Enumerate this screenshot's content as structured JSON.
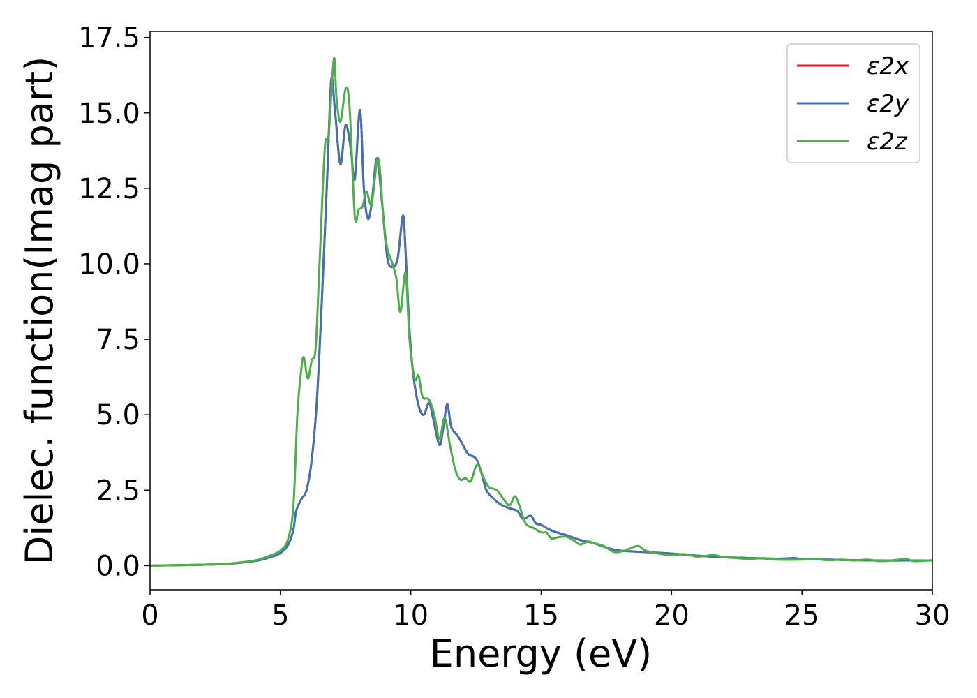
{
  "chart_data": {
    "type": "line",
    "xlabel": "Energy (eV)",
    "ylabel": "Dielec. function(Imag part)",
    "xlim": [
      0,
      30
    ],
    "ylim": [
      -0.8,
      17.7
    ],
    "x_ticks": [
      "0",
      "5",
      "10",
      "15",
      "20",
      "25",
      "30"
    ],
    "y_ticks": [
      "0.0",
      "2.5",
      "5.0",
      "7.5",
      "10.0",
      "12.5",
      "15.0",
      "17.5"
    ],
    "grid": false,
    "legend_position": "top-right",
    "series": [
      {
        "name": "ε2x",
        "color": "#e41a1c",
        "points": [
          [
            0,
            0.0
          ],
          [
            2,
            0.03
          ],
          [
            3,
            0.06
          ],
          [
            4,
            0.15
          ],
          [
            4.5,
            0.25
          ],
          [
            5,
            0.42
          ],
          [
            5.3,
            0.7
          ],
          [
            5.5,
            1.2
          ],
          [
            5.6,
            1.8
          ],
          [
            5.8,
            2.2
          ],
          [
            6.0,
            2.5
          ],
          [
            6.2,
            3.5
          ],
          [
            6.4,
            5.5
          ],
          [
            6.6,
            9.0
          ],
          [
            6.8,
            13.0
          ],
          [
            6.95,
            16.1
          ],
          [
            7.1,
            15.0
          ],
          [
            7.3,
            13.3
          ],
          [
            7.5,
            14.6
          ],
          [
            7.7,
            13.8
          ],
          [
            7.85,
            12.8
          ],
          [
            8.05,
            15.1
          ],
          [
            8.2,
            12.5
          ],
          [
            8.35,
            11.5
          ],
          [
            8.5,
            12.0
          ],
          [
            8.7,
            13.5
          ],
          [
            8.9,
            12.0
          ],
          [
            9.1,
            10.2
          ],
          [
            9.3,
            9.9
          ],
          [
            9.5,
            10.2
          ],
          [
            9.7,
            11.6
          ],
          [
            9.8,
            10.4
          ],
          [
            9.95,
            7.8
          ],
          [
            10.1,
            6.3
          ],
          [
            10.3,
            5.3
          ],
          [
            10.5,
            5.0
          ],
          [
            10.7,
            5.4
          ],
          [
            10.85,
            4.9
          ],
          [
            11.1,
            4.0
          ],
          [
            11.25,
            4.6
          ],
          [
            11.4,
            5.35
          ],
          [
            11.55,
            4.6
          ],
          [
            11.8,
            4.3
          ],
          [
            12.0,
            4.0
          ],
          [
            12.2,
            3.7
          ],
          [
            12.5,
            3.55
          ],
          [
            12.7,
            3.1
          ],
          [
            12.9,
            2.5
          ],
          [
            13.2,
            2.2
          ],
          [
            13.5,
            2.0
          ],
          [
            13.8,
            1.9
          ],
          [
            14.1,
            1.8
          ],
          [
            14.3,
            1.55
          ],
          [
            14.6,
            1.65
          ],
          [
            14.8,
            1.4
          ],
          [
            15.0,
            1.35
          ],
          [
            15.3,
            1.2
          ],
          [
            15.6,
            1.1
          ],
          [
            16.0,
            1.0
          ],
          [
            16.5,
            0.85
          ],
          [
            17.0,
            0.75
          ],
          [
            17.5,
            0.6
          ],
          [
            18,
            0.5
          ],
          [
            19,
            0.45
          ],
          [
            20,
            0.4
          ],
          [
            21,
            0.33
          ],
          [
            22,
            0.28
          ],
          [
            23,
            0.25
          ],
          [
            24,
            0.23
          ],
          [
            24.7,
            0.25
          ],
          [
            25,
            0.22
          ],
          [
            26,
            0.2
          ],
          [
            27,
            0.18
          ],
          [
            28,
            0.17
          ],
          [
            29,
            0.17
          ],
          [
            30,
            0.17
          ]
        ]
      },
      {
        "name": "ε2y",
        "color": "#3f73b5",
        "points": [
          [
            0,
            0.0
          ],
          [
            2,
            0.03
          ],
          [
            3,
            0.06
          ],
          [
            4,
            0.15
          ],
          [
            4.5,
            0.25
          ],
          [
            5,
            0.42
          ],
          [
            5.3,
            0.7
          ],
          [
            5.5,
            1.2
          ],
          [
            5.6,
            1.8
          ],
          [
            5.8,
            2.2
          ],
          [
            6.0,
            2.5
          ],
          [
            6.2,
            3.5
          ],
          [
            6.4,
            5.5
          ],
          [
            6.6,
            9.0
          ],
          [
            6.8,
            13.0
          ],
          [
            6.95,
            16.1
          ],
          [
            7.1,
            15.0
          ],
          [
            7.3,
            13.3
          ],
          [
            7.5,
            14.6
          ],
          [
            7.7,
            13.8
          ],
          [
            7.85,
            12.8
          ],
          [
            8.05,
            15.1
          ],
          [
            8.2,
            12.5
          ],
          [
            8.35,
            11.5
          ],
          [
            8.5,
            12.0
          ],
          [
            8.7,
            13.5
          ],
          [
            8.9,
            12.0
          ],
          [
            9.1,
            10.2
          ],
          [
            9.3,
            9.9
          ],
          [
            9.5,
            10.2
          ],
          [
            9.7,
            11.6
          ],
          [
            9.8,
            10.4
          ],
          [
            9.95,
            7.8
          ],
          [
            10.1,
            6.3
          ],
          [
            10.3,
            5.3
          ],
          [
            10.5,
            5.0
          ],
          [
            10.7,
            5.4
          ],
          [
            10.85,
            4.9
          ],
          [
            11.1,
            4.0
          ],
          [
            11.25,
            4.6
          ],
          [
            11.4,
            5.35
          ],
          [
            11.55,
            4.6
          ],
          [
            11.8,
            4.3
          ],
          [
            12.0,
            4.0
          ],
          [
            12.2,
            3.7
          ],
          [
            12.5,
            3.55
          ],
          [
            12.7,
            3.1
          ],
          [
            12.9,
            2.5
          ],
          [
            13.2,
            2.2
          ],
          [
            13.5,
            2.0
          ],
          [
            13.8,
            1.9
          ],
          [
            14.1,
            1.8
          ],
          [
            14.3,
            1.55
          ],
          [
            14.6,
            1.65
          ],
          [
            14.8,
            1.4
          ],
          [
            15.0,
            1.35
          ],
          [
            15.3,
            1.2
          ],
          [
            15.6,
            1.1
          ],
          [
            16.0,
            1.0
          ],
          [
            16.5,
            0.85
          ],
          [
            17.0,
            0.75
          ],
          [
            17.5,
            0.6
          ],
          [
            18,
            0.5
          ],
          [
            19,
            0.45
          ],
          [
            20,
            0.4
          ],
          [
            21,
            0.33
          ],
          [
            22,
            0.28
          ],
          [
            23,
            0.25
          ],
          [
            24,
            0.23
          ],
          [
            24.7,
            0.25
          ],
          [
            25,
            0.22
          ],
          [
            26,
            0.2
          ],
          [
            27,
            0.18
          ],
          [
            28,
            0.17
          ],
          [
            29,
            0.17
          ],
          [
            30,
            0.17
          ]
        ]
      },
      {
        "name": "ε2z",
        "color": "#4daf4a",
        "points": [
          [
            0,
            0.0
          ],
          [
            2,
            0.03
          ],
          [
            3,
            0.07
          ],
          [
            4,
            0.17
          ],
          [
            4.5,
            0.3
          ],
          [
            5,
            0.5
          ],
          [
            5.3,
            0.9
          ],
          [
            5.5,
            2.0
          ],
          [
            5.65,
            5.0
          ],
          [
            5.8,
            6.5
          ],
          [
            5.9,
            6.9
          ],
          [
            6.05,
            6.2
          ],
          [
            6.2,
            6.8
          ],
          [
            6.35,
            7.2
          ],
          [
            6.5,
            10.0
          ],
          [
            6.7,
            13.8
          ],
          [
            6.85,
            14.3
          ],
          [
            7.05,
            16.8
          ],
          [
            7.15,
            15.5
          ],
          [
            7.3,
            14.7
          ],
          [
            7.5,
            15.8
          ],
          [
            7.65,
            15.2
          ],
          [
            7.85,
            11.6
          ],
          [
            8.0,
            11.8
          ],
          [
            8.15,
            11.9
          ],
          [
            8.3,
            12.4
          ],
          [
            8.5,
            12.0
          ],
          [
            8.75,
            13.5
          ],
          [
            8.95,
            11.5
          ],
          [
            9.1,
            10.5
          ],
          [
            9.3,
            10.0
          ],
          [
            9.45,
            9.5
          ],
          [
            9.6,
            8.4
          ],
          [
            9.8,
            9.7
          ],
          [
            9.95,
            7.5
          ],
          [
            10.15,
            6.2
          ],
          [
            10.3,
            6.3
          ],
          [
            10.45,
            5.6
          ],
          [
            10.7,
            5.5
          ],
          [
            10.9,
            5.0
          ],
          [
            11.1,
            4.2
          ],
          [
            11.3,
            4.9
          ],
          [
            11.5,
            4.0
          ],
          [
            11.7,
            3.2
          ],
          [
            11.9,
            2.85
          ],
          [
            12.1,
            2.9
          ],
          [
            12.3,
            2.8
          ],
          [
            12.55,
            3.35
          ],
          [
            12.8,
            2.9
          ],
          [
            13.0,
            2.6
          ],
          [
            13.3,
            2.5
          ],
          [
            13.6,
            2.15
          ],
          [
            13.8,
            2.0
          ],
          [
            14.0,
            2.3
          ],
          [
            14.2,
            1.9
          ],
          [
            14.4,
            1.4
          ],
          [
            14.7,
            1.25
          ],
          [
            15.0,
            1.1
          ],
          [
            15.2,
            1.1
          ],
          [
            15.4,
            0.9
          ],
          [
            15.7,
            0.95
          ],
          [
            16.0,
            0.95
          ],
          [
            16.3,
            0.8
          ],
          [
            16.5,
            0.7
          ],
          [
            16.8,
            0.8
          ],
          [
            17.0,
            0.75
          ],
          [
            17.4,
            0.65
          ],
          [
            17.8,
            0.45
          ],
          [
            18.2,
            0.5
          ],
          [
            18.7,
            0.65
          ],
          [
            19.0,
            0.5
          ],
          [
            19.5,
            0.4
          ],
          [
            20,
            0.35
          ],
          [
            20.5,
            0.38
          ],
          [
            21,
            0.3
          ],
          [
            21.6,
            0.35
          ],
          [
            22,
            0.28
          ],
          [
            22.5,
            0.25
          ],
          [
            23,
            0.22
          ],
          [
            23.5,
            0.25
          ],
          [
            24,
            0.2
          ],
          [
            25,
            0.2
          ],
          [
            25.5,
            0.22
          ],
          [
            26,
            0.18
          ],
          [
            26.5,
            0.2
          ],
          [
            27,
            0.17
          ],
          [
            27.5,
            0.2
          ],
          [
            28,
            0.15
          ],
          [
            28.5,
            0.18
          ],
          [
            29,
            0.22
          ],
          [
            29.3,
            0.15
          ],
          [
            30,
            0.18
          ]
        ]
      }
    ]
  }
}
